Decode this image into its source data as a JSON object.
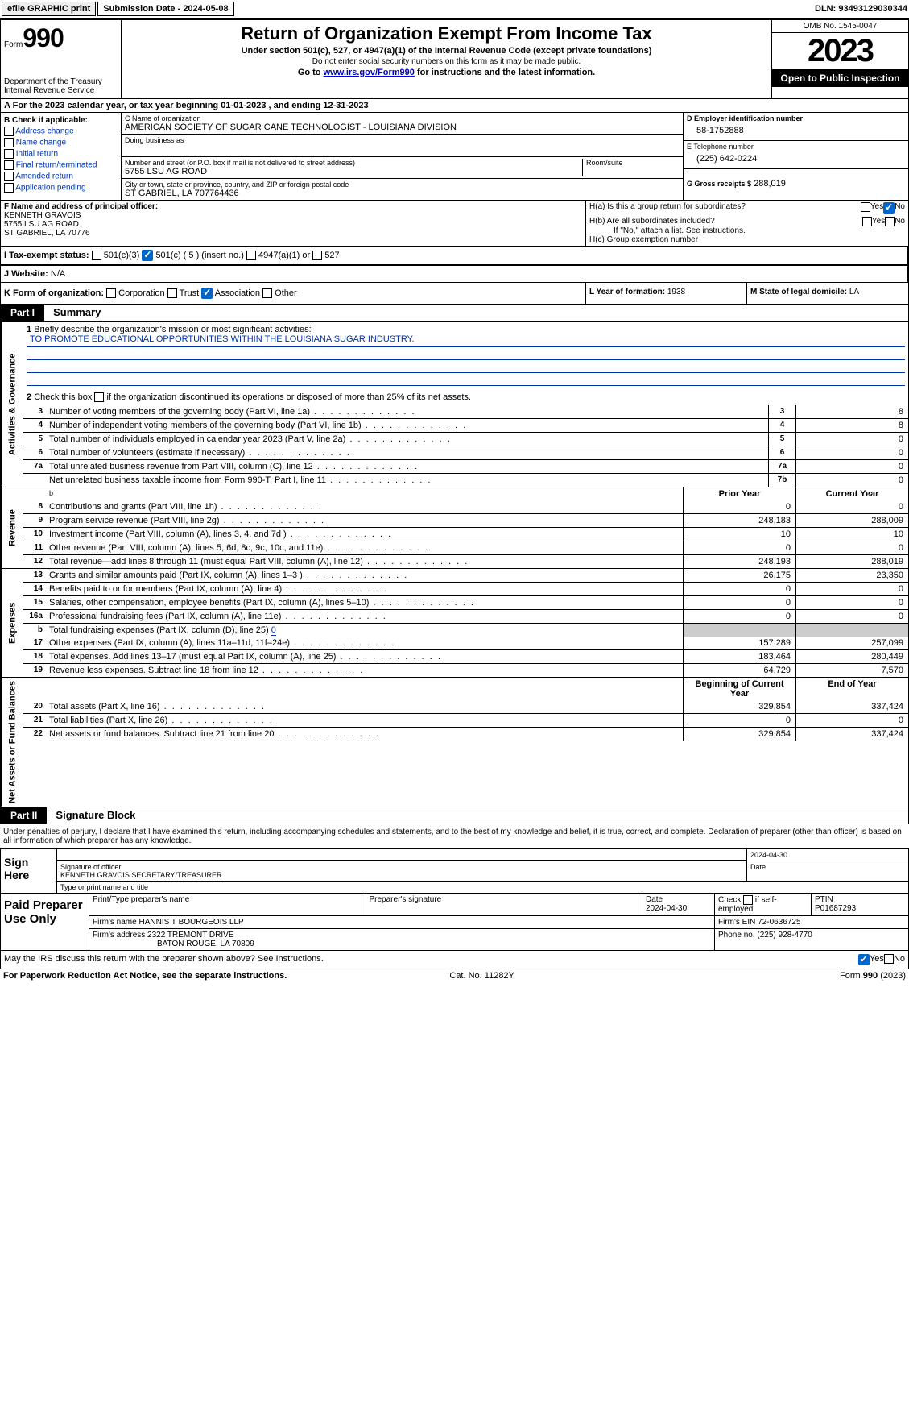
{
  "topbar": {
    "efile": "efile GRAPHIC print",
    "submission": "Submission Date - 2024-05-08",
    "dln": "DLN: 93493129030344"
  },
  "header": {
    "form_label": "Form",
    "form_num": "990",
    "dept": "Department of the Treasury Internal Revenue Service",
    "title": "Return of Organization Exempt From Income Tax",
    "sub1": "Under section 501(c), 527, or 4947(a)(1) of the Internal Revenue Code (except private foundations)",
    "sub2": "Do not enter social security numbers on this form as it may be made public.",
    "sub3_prefix": "Go to ",
    "sub3_link": "www.irs.gov/Form990",
    "sub3_suffix": " for instructions and the latest information.",
    "omb": "OMB No. 1545-0047",
    "year": "2023",
    "open": "Open to Public Inspection"
  },
  "line_a": "For the 2023 calendar year, or tax year beginning 01-01-2023   , and ending 12-31-2023",
  "col_b": {
    "header": "B Check if applicable:",
    "items": [
      "Address change",
      "Name change",
      "Initial return",
      "Final return/terminated",
      "Amended return",
      "Application pending"
    ]
  },
  "col_c": {
    "name_label": "C Name of organization",
    "name": "AMERICAN SOCIETY OF SUGAR CANE TECHNOLOGIST - LOUISIANA DIVISION",
    "dba_label": "Doing business as",
    "addr_label": "Number and street (or P.O. box if mail is not delivered to street address)",
    "addr": "5755 LSU AG ROAD",
    "room_label": "Room/suite",
    "city_label": "City or town, state or province, country, and ZIP or foreign postal code",
    "city": "ST GABRIEL, LA  707764436"
  },
  "col_d": {
    "ein_label": "D Employer identification number",
    "ein": "58-1752888",
    "phone_label": "E Telephone number",
    "phone": "(225) 642-0224",
    "gross_label": "G Gross receipts $",
    "gross": "288,019"
  },
  "col_f": {
    "label": "F  Name and address of principal officer:",
    "name": "KENNETH GRAVOIS",
    "addr1": "5755 LSU AG ROAD",
    "addr2": "ST GABRIEL, LA  70776"
  },
  "col_h": {
    "ha_label": "H(a)  Is this a group return for subordinates?",
    "hb_label": "H(b)  Are all subordinates included?",
    "hb_note": "If \"No,\" attach a list. See instructions.",
    "hc_label": "H(c)  Group exemption number"
  },
  "line_i": {
    "label": "I   Tax-exempt status:",
    "opts": [
      "501(c)(3)",
      "501(c) ( 5 ) (insert no.)",
      "4947(a)(1) or",
      "527"
    ]
  },
  "line_j": {
    "label": "J   Website:",
    "val": "N/A"
  },
  "line_k": {
    "label": "K Form of organization:",
    "opts": [
      "Corporation",
      "Trust",
      "Association",
      "Other"
    ]
  },
  "line_l": {
    "label": "L Year of formation:",
    "val": "1938"
  },
  "line_m": {
    "label": "M State of legal domicile:",
    "val": "LA"
  },
  "part1": {
    "label": "Part I",
    "title": "Summary"
  },
  "sections": {
    "gov": "Activities & Governance",
    "rev": "Revenue",
    "exp": "Expenses",
    "net": "Net Assets or Fund Balances"
  },
  "line1": {
    "label": "Briefly describe the organization's mission or most significant activities:",
    "mission": "TO PROMOTE EDUCATIONAL OPPORTUNITIES WITHIN THE LOUISIANA SUGAR INDUSTRY."
  },
  "line2": "Check this box        if the organization discontinued its operations or disposed of more than 25% of its net assets.",
  "gov_lines": [
    {
      "n": "3",
      "d": "Number of voting members of the governing body (Part VI, line 1a)",
      "b": "3",
      "v": "8"
    },
    {
      "n": "4",
      "d": "Number of independent voting members of the governing body (Part VI, line 1b)",
      "b": "4",
      "v": "8"
    },
    {
      "n": "5",
      "d": "Total number of individuals employed in calendar year 2023 (Part V, line 2a)",
      "b": "5",
      "v": "0"
    },
    {
      "n": "6",
      "d": "Total number of volunteers (estimate if necessary)",
      "b": "6",
      "v": "0"
    },
    {
      "n": "7a",
      "d": "Total unrelated business revenue from Part VIII, column (C), line 12",
      "b": "7a",
      "v": "0"
    },
    {
      "n": "",
      "d": "Net unrelated business taxable income from Form 990-T, Part I, line 11",
      "b": "7b",
      "v": "0"
    }
  ],
  "col_headers": {
    "prior": "Prior Year",
    "current": "Current Year",
    "begin": "Beginning of Current Year",
    "end": "End of Year"
  },
  "rev_lines": [
    {
      "n": "8",
      "d": "Contributions and grants (Part VIII, line 1h)",
      "p": "0",
      "c": "0"
    },
    {
      "n": "9",
      "d": "Program service revenue (Part VIII, line 2g)",
      "p": "248,183",
      "c": "288,009"
    },
    {
      "n": "10",
      "d": "Investment income (Part VIII, column (A), lines 3, 4, and 7d )",
      "p": "10",
      "c": "10"
    },
    {
      "n": "11",
      "d": "Other revenue (Part VIII, column (A), lines 5, 6d, 8c, 9c, 10c, and 11e)",
      "p": "0",
      "c": "0"
    },
    {
      "n": "12",
      "d": "Total revenue—add lines 8 through 11 (must equal Part VIII, column (A), line 12)",
      "p": "248,193",
      "c": "288,019"
    }
  ],
  "exp_lines": [
    {
      "n": "13",
      "d": "Grants and similar amounts paid (Part IX, column (A), lines 1–3 )",
      "p": "26,175",
      "c": "23,350"
    },
    {
      "n": "14",
      "d": "Benefits paid to or for members (Part IX, column (A), line 4)",
      "p": "0",
      "c": "0"
    },
    {
      "n": "15",
      "d": "Salaries, other compensation, employee benefits (Part IX, column (A), lines 5–10)",
      "p": "0",
      "c": "0"
    },
    {
      "n": "16a",
      "d": "Professional fundraising fees (Part IX, column (A), line 11e)",
      "p": "0",
      "c": "0"
    }
  ],
  "line16b": {
    "n": "b",
    "d": "Total fundraising expenses (Part IX, column (D), line 25)",
    "v": "0"
  },
  "exp_lines2": [
    {
      "n": "17",
      "d": "Other expenses (Part IX, column (A), lines 11a–11d, 11f–24e)",
      "p": "157,289",
      "c": "257,099"
    },
    {
      "n": "18",
      "d": "Total expenses. Add lines 13–17 (must equal Part IX, column (A), line 25)",
      "p": "183,464",
      "c": "280,449"
    },
    {
      "n": "19",
      "d": "Revenue less expenses. Subtract line 18 from line 12",
      "p": "64,729",
      "c": "7,570"
    }
  ],
  "net_lines": [
    {
      "n": "20",
      "d": "Total assets (Part X, line 16)",
      "p": "329,854",
      "c": "337,424"
    },
    {
      "n": "21",
      "d": "Total liabilities (Part X, line 26)",
      "p": "0",
      "c": "0"
    },
    {
      "n": "22",
      "d": "Net assets or fund balances. Subtract line 21 from line 20",
      "p": "329,854",
      "c": "337,424"
    }
  ],
  "part2": {
    "label": "Part II",
    "title": "Signature Block"
  },
  "sig_text": "Under penalties of perjury, I declare that I have examined this return, including accompanying schedules and statements, and to the best of my knowledge and belief, it is true, correct, and complete. Declaration of preparer (other than officer) is based on all information of which preparer has any knowledge.",
  "sign": {
    "here": "Sign Here",
    "sig_label": "Signature of officer",
    "officer": "KENNETH GRAVOIS SECRETARY/TREASURER",
    "name_label": "Type or print name and title",
    "date_label": "Date",
    "date": "2024-04-30"
  },
  "prep": {
    "here": "Paid Preparer Use Only",
    "name_label": "Print/Type preparer's name",
    "sig_label": "Preparer's signature",
    "date_label": "Date",
    "date": "2024-04-30",
    "self_label": "Check        if self-employed",
    "ptin_label": "PTIN",
    "ptin": "P01687293",
    "firm_name_label": "Firm's name",
    "firm_name": "HANNIS T BOURGEOIS LLP",
    "firm_ein_label": "Firm's EIN",
    "firm_ein": "72-0636725",
    "firm_addr_label": "Firm's address",
    "firm_addr1": "2322 TREMONT DRIVE",
    "firm_addr2": "BATON ROUGE, LA  70809",
    "phone_label": "Phone no.",
    "phone": "(225) 928-4770"
  },
  "discuss": "May the IRS discuss this return with the preparer shown above? See Instructions.",
  "footer": {
    "left": "For Paperwork Reduction Act Notice, see the separate instructions.",
    "mid": "Cat. No. 11282Y",
    "right": "Form 990 (2023)"
  },
  "yes": "Yes",
  "no": "No"
}
